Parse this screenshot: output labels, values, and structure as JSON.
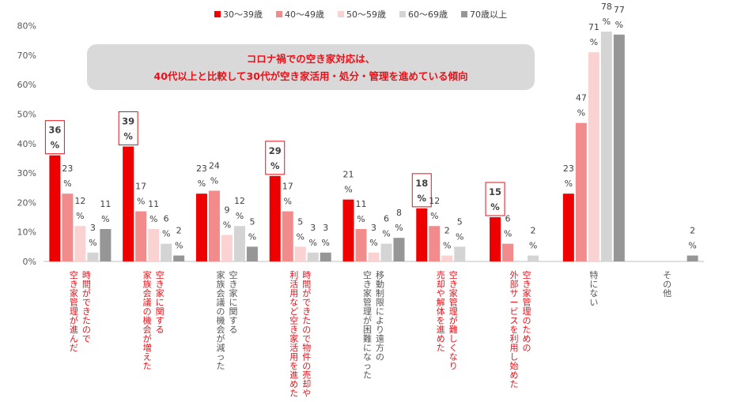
{
  "chart_data": {
    "type": "bar",
    "ylim": [
      0,
      80
    ],
    "yticks": [
      "0%",
      "10%",
      "20%",
      "30%",
      "40%",
      "50%",
      "60%",
      "70%",
      "80%"
    ],
    "grid": false,
    "legend_position": "top",
    "callout": {
      "line1": "コロナ禍での空き家対応は、",
      "line2": "40代以上と比較して30代が空き家活用・処分・管理を進めている傾向"
    },
    "categories": [
      [
        "時間ができたので",
        "空き家管理が進んだ"
      ],
      [
        "空き家に関する",
        "家族会議の機会が増えた"
      ],
      [
        "空き家に関する",
        "家族会議の機会が減った"
      ],
      [
        "時間ができたので物件の売却や",
        "利活用など空き家活用を進めた"
      ],
      [
        "移動制限により遠方の",
        "空き家管理が困難になった"
      ],
      [
        "空き家管理が難しくなり",
        "売却や解体を進めた"
      ],
      [
        "空き家管理のための",
        "外部サービスを利用し始めた"
      ],
      [
        "特にない"
      ],
      [
        "その他"
      ]
    ],
    "category_colors": [
      "#e8111a",
      "#e8111a",
      "#555555",
      "#e8111a",
      "#555555",
      "#e8111a",
      "#e8111a",
      "#555555",
      "#555555"
    ],
    "highlighted": [
      true,
      true,
      false,
      true,
      false,
      true,
      true,
      false,
      false
    ],
    "series": [
      {
        "name": "30～39歳",
        "color": "#ee0000",
        "values": [
          36,
          39,
          23,
          29,
          21,
          18,
          15,
          23,
          0
        ]
      },
      {
        "name": "40～49歳",
        "color": "#f28b8b",
        "values": [
          23,
          17,
          24,
          17,
          11,
          12,
          6,
          47,
          0
        ]
      },
      {
        "name": "50～59歳",
        "color": "#fbd2d2",
        "values": [
          12,
          11,
          9,
          5,
          3,
          2,
          0,
          71,
          0
        ]
      },
      {
        "name": "60～69歳",
        "color": "#d4d4d4",
        "values": [
          3,
          6,
          12,
          3,
          6,
          5,
          2,
          78,
          0
        ]
      },
      {
        "name": "70歳以上",
        "color": "#969696",
        "values": [
          11,
          2,
          5,
          3,
          8,
          0,
          0,
          77,
          2
        ]
      }
    ]
  }
}
